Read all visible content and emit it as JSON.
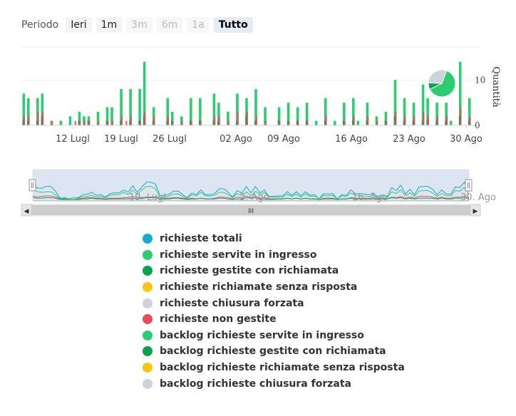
{
  "toolbar": {
    "period_label": "Periodo",
    "buttons": [
      {
        "label": "Ieri",
        "state": "normal"
      },
      {
        "label": "1m",
        "state": "normal"
      },
      {
        "label": "3m",
        "state": "disabled"
      },
      {
        "label": "6m",
        "state": "disabled"
      },
      {
        "label": "1a",
        "state": "disabled"
      },
      {
        "label": "Tutto",
        "state": "active"
      }
    ]
  },
  "chart_data": {
    "type": "bar",
    "ylabel": "Quantità",
    "y_ticks": [
      0,
      10
    ],
    "ylim": [
      0,
      16
    ],
    "x_tick_labels": [
      "12 Lugl",
      "19 Lugl",
      "26 Lugl",
      "02 Ago",
      "09 Ago",
      "16 Ago",
      "23 Ago",
      "30 Ago"
    ],
    "navigator_labels": [
      "19. Lugl",
      "2. Ago",
      "16. Ago",
      "30. Ago"
    ],
    "colors": {
      "totali": "#1ba8d5",
      "servite": "#2ecc71",
      "gestite": "#0e9f4f",
      "senza_risposta": "#f5c518",
      "chiusura": "#ccd3da",
      "non_gestite": "#e74c5c"
    },
    "series": [
      {
        "name": "richieste servite in ingresso",
        "color": "#2ecc71",
        "values": [
          7,
          6,
          0,
          6,
          7,
          0,
          1,
          0,
          1,
          0,
          2,
          0,
          3,
          2,
          2,
          0,
          3,
          0,
          4,
          4,
          0,
          8,
          0,
          8,
          0,
          8,
          14,
          0,
          4,
          0,
          0,
          6,
          3,
          0,
          2,
          0,
          6,
          0,
          6,
          0,
          0,
          7,
          5,
          0,
          3,
          0,
          7,
          0,
          6,
          0,
          8,
          0,
          4,
          0,
          0,
          4,
          0,
          5,
          0,
          4,
          0,
          5,
          0,
          1,
          0,
          6,
          0,
          1,
          0,
          5,
          0,
          6,
          1,
          0,
          5,
          0,
          2,
          0,
          3,
          0,
          10,
          0,
          6,
          0,
          5,
          0,
          9,
          6,
          0,
          5,
          0,
          5,
          1,
          0,
          14,
          0,
          6
        ]
      },
      {
        "name": "richieste gestite con richiamata",
        "color": "#0e9f4f",
        "values": [
          1,
          1,
          0,
          1,
          2,
          0,
          0,
          0,
          0,
          0,
          0,
          0,
          1,
          0,
          1,
          0,
          0,
          0,
          1,
          0,
          0,
          1,
          0,
          1,
          0,
          1,
          2,
          0,
          1,
          0,
          0,
          1,
          1,
          0,
          0,
          0,
          1,
          0,
          1,
          0,
          0,
          1,
          1,
          0,
          0,
          0,
          1,
          0,
          2,
          0,
          1,
          0,
          0,
          0,
          0,
          1,
          0,
          1,
          0,
          1,
          0,
          1,
          0,
          0,
          0,
          1,
          0,
          0,
          0,
          1,
          0,
          1,
          0,
          0,
          1,
          0,
          0,
          0,
          1,
          0,
          2,
          0,
          1,
          0,
          1,
          0,
          1,
          1,
          0,
          1,
          0,
          1,
          0,
          0,
          2,
          0,
          1
        ]
      },
      {
        "name": "richieste non gestite",
        "color": "#e74c5c",
        "values": [
          2,
          2,
          0,
          3,
          3,
          0,
          1,
          0,
          0,
          0,
          0,
          1,
          1,
          1,
          1,
          0,
          1,
          0,
          1,
          1,
          0,
          2,
          1,
          2,
          0,
          1,
          3,
          0,
          2,
          0,
          0,
          2,
          1,
          0,
          1,
          0,
          1,
          0,
          1,
          0,
          0,
          2,
          2,
          0,
          1,
          0,
          3,
          0,
          3,
          0,
          2,
          0,
          1,
          0,
          0,
          1,
          0,
          1,
          0,
          1,
          0,
          1,
          0,
          0,
          0,
          2,
          0,
          0,
          0,
          1,
          0,
          2,
          0,
          0,
          2,
          0,
          1,
          0,
          1,
          0,
          3,
          0,
          2,
          0,
          2,
          0,
          3,
          2,
          0,
          2,
          0,
          2,
          0,
          0,
          4,
          0,
          2
        ]
      }
    ]
  },
  "navigator": {
    "left_arrow": "◀",
    "right_arrow": "▶",
    "grip": "III"
  },
  "legend": [
    {
      "label": "richieste totali",
      "color": "#1ba8d5"
    },
    {
      "label": "richieste servite in ingresso",
      "color": "#2ecc71"
    },
    {
      "label": "richieste gestite con richiamata",
      "color": "#0e9f4f"
    },
    {
      "label": "richieste richiamate senza risposta",
      "color": "#f5c518"
    },
    {
      "label": "richieste chiusura forzata",
      "color": "#ccd3da"
    },
    {
      "label": "richieste non gestite",
      "color": "#e74c5c"
    },
    {
      "label": "backlog richieste servite in ingresso",
      "color": "#2ecc71"
    },
    {
      "label": "backlog richieste gestite con richiamata",
      "color": "#0e9f4f"
    },
    {
      "label": "backlog richieste richiamate senza risposta",
      "color": "#f5c518"
    },
    {
      "label": "backlog richieste chiusura forzata",
      "color": "#ccd3da"
    }
  ],
  "pie": {
    "slices": [
      {
        "name": "richieste servite in ingresso",
        "value": 62,
        "color": "#2ecc71"
      },
      {
        "name": "richieste gestite con richiamata",
        "value": 8,
        "color": "#0e9f4f"
      },
      {
        "name": "richieste chiusura forzata",
        "value": 30,
        "color": "#ccd3da"
      }
    ]
  }
}
